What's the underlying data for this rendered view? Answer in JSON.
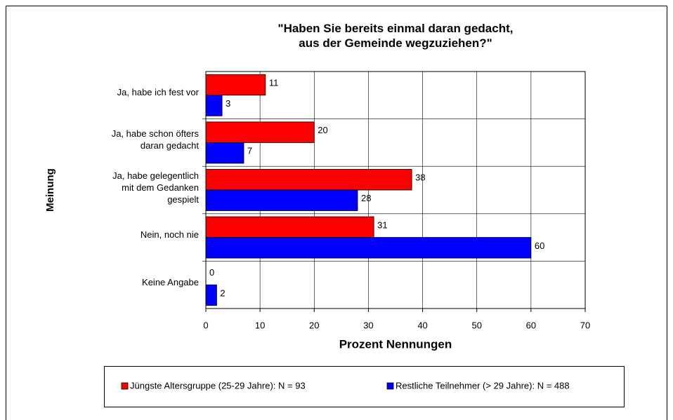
{
  "chart_data": {
    "type": "bar",
    "orientation": "horizontal",
    "title": "\"Haben Sie bereits einmal daran gedacht,\naus der Gemeinde wegzuziehen?\"",
    "x_label": "Prozent Nennungen",
    "y_label": "Meinung",
    "categories": [
      "Ja, habe ich fest vor",
      "Ja, habe schon öfters\ndaran gedacht",
      "Ja, habe gelegentlich\nmit dem Gedanken\ngespielt",
      "Nein, noch nie",
      "Keine Angabe"
    ],
    "series": [
      {
        "name": "Jüngste Altersgruppe (25-29 Jahre): N = 93",
        "color": "#ff0000",
        "values": [
          11,
          20,
          38,
          31,
          0
        ]
      },
      {
        "name": "Restliche Teilnehmer (> 29 Jahre): N = 488",
        "color": "#0000ff",
        "values": [
          3,
          7,
          28,
          60,
          2
        ]
      }
    ],
    "xlim": [
      0,
      70
    ],
    "xticks": [
      0,
      10,
      20,
      30,
      40,
      50,
      60,
      70
    ],
    "grid": true,
    "legend": "bottom"
  }
}
